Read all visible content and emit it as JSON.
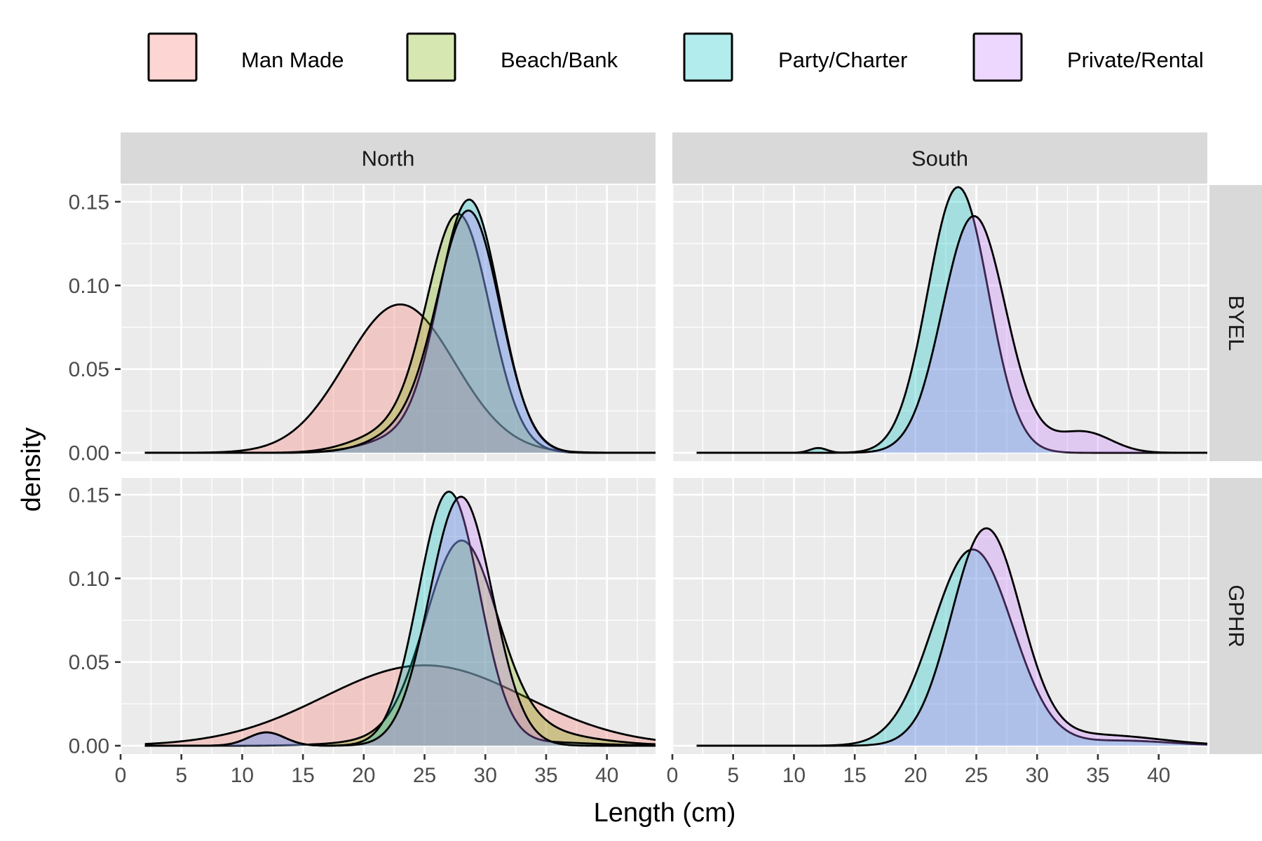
{
  "chart_data": {
    "type": "area",
    "subtype": "density",
    "xlabel": "Length (cm)",
    "ylabel": "density",
    "xlim": [
      0,
      44
    ],
    "ylim": [
      -0.005,
      0.16
    ],
    "x_ticks": [
      0,
      5,
      10,
      15,
      20,
      25,
      30,
      35,
      40
    ],
    "y_ticks": [
      0.0,
      0.05,
      0.1,
      0.15
    ],
    "y_tick_labels": [
      "0.00",
      "0.05",
      "0.10",
      "0.15"
    ],
    "grid": true,
    "legend_position": "top",
    "legend": [
      {
        "name": "Man Made",
        "color": "#F8766D"
      },
      {
        "name": "Beach/Bank",
        "color": "#7CAE00"
      },
      {
        "name": "Party/Charter",
        "color": "#00BFC4"
      },
      {
        "name": "Private/Rental",
        "color": "#C77CFF"
      }
    ],
    "facet_columns": [
      "North",
      "South"
    ],
    "facet_rows": [
      "BYEL",
      "GPHR"
    ],
    "panels": [
      {
        "col": "North",
        "row": "BYEL",
        "series": [
          {
            "name": "Man Made",
            "x_range": [
              2,
              44
            ],
            "components": [
              {
                "weight": 1.0,
                "mean": 23,
                "sd": 4.5
              }
            ]
          },
          {
            "name": "Beach/Bank",
            "x_range": [
              2,
              44
            ],
            "components": [
              {
                "weight": 0.92,
                "mean": 27.8,
                "sd": 2.6
              },
              {
                "weight": 0.08,
                "mean": 22,
                "sd": 3
              }
            ]
          },
          {
            "name": "Party/Charter",
            "x_range": [
              2,
              44
            ],
            "components": [
              {
                "weight": 0.94,
                "mean": 28.7,
                "sd": 2.5
              },
              {
                "weight": 0.06,
                "mean": 23,
                "sd": 3
              }
            ]
          },
          {
            "name": "Private/Rental",
            "x_range": [
              2,
              44
            ],
            "components": [
              {
                "weight": 0.9,
                "mean": 28.7,
                "sd": 2.55
              },
              {
                "weight": 0.1,
                "mean": 24,
                "sd": 3
              }
            ]
          }
        ]
      },
      {
        "col": "South",
        "row": "BYEL",
        "series": [
          {
            "name": "Party/Charter",
            "x_range": [
              2,
              44
            ],
            "components": [
              {
                "weight": 0.995,
                "mean": 23.5,
                "sd": 2.5
              },
              {
                "weight": 0.005,
                "mean": 12,
                "sd": 0.7
              }
            ]
          },
          {
            "name": "Private/Rental",
            "x_range": [
              2,
              44
            ],
            "components": [
              {
                "weight": 0.92,
                "mean": 24.8,
                "sd": 2.6
              },
              {
                "weight": 0.06,
                "mean": 34,
                "sd": 2.2
              },
              {
                "weight": 0.02,
                "mean": 31,
                "sd": 3
              }
            ]
          }
        ]
      },
      {
        "col": "North",
        "row": "GPHR",
        "series": [
          {
            "name": "Man Made",
            "x_range": [
              2,
              44
            ],
            "components": [
              {
                "weight": 1.0,
                "mean": 25,
                "sd": 8.3
              }
            ]
          },
          {
            "name": "Beach/Bank",
            "x_range": [
              2,
              44
            ],
            "components": [
              {
                "weight": 0.8,
                "mean": 28,
                "sd": 2.9
              },
              {
                "weight": 0.2,
                "mean": 30,
                "sd": 6
              }
            ]
          },
          {
            "name": "Party/Charter",
            "x_range": [
              2,
              44
            ],
            "components": [
              {
                "weight": 0.95,
                "mean": 27,
                "sd": 2.5
              },
              {
                "weight": 0.03,
                "mean": 12,
                "sd": 1.5
              },
              {
                "weight": 0.02,
                "mean": 35,
                "sd": 4
              }
            ]
          },
          {
            "name": "Private/Rental",
            "x_range": [
              2,
              44
            ],
            "components": [
              {
                "weight": 0.97,
                "mean": 28,
                "sd": 2.6
              },
              {
                "weight": 0.03,
                "mean": 12,
                "sd": 1.5
              }
            ]
          }
        ]
      },
      {
        "col": "South",
        "row": "GPHR",
        "series": [
          {
            "name": "Party/Charter",
            "x_range": [
              2,
              44
            ],
            "components": [
              {
                "weight": 0.97,
                "mean": 24.7,
                "sd": 3.3
              },
              {
                "weight": 0.03,
                "mean": 37,
                "sd": 4
              }
            ]
          },
          {
            "name": "Private/Rental",
            "x_range": [
              2,
              44
            ],
            "components": [
              {
                "weight": 0.92,
                "mean": 25.8,
                "sd": 2.85
              },
              {
                "weight": 0.08,
                "mean": 35,
                "sd": 5
              }
            ]
          }
        ]
      }
    ]
  }
}
